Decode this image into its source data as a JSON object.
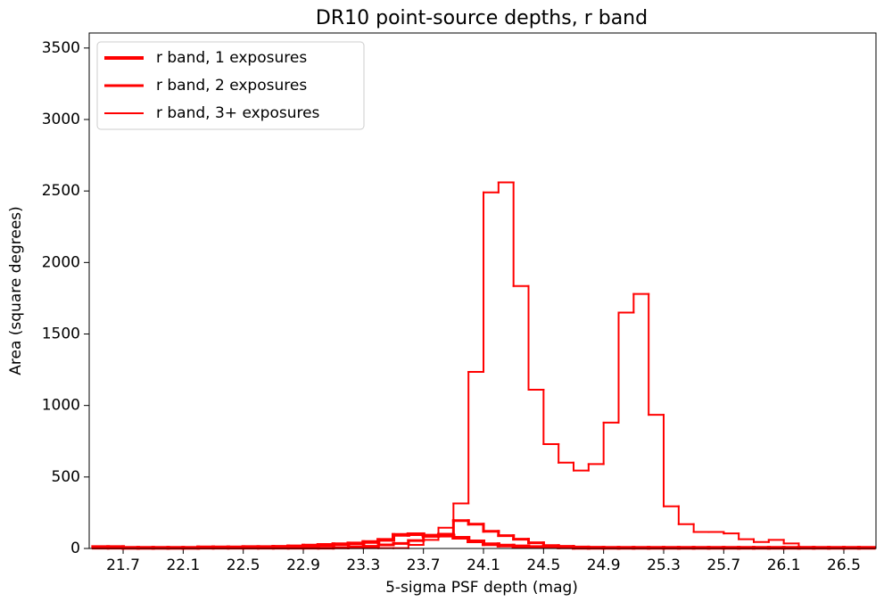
{
  "chart_data": {
    "type": "histogram",
    "title": "DR10 point-source depths, r band",
    "x_label": "5-sigma PSF depth (mag)",
    "y_label": "Area (square degrees)",
    "bins": [
      21.5,
      21.6,
      21.7,
      21.8,
      21.9,
      22.0,
      22.1,
      22.2,
      22.3,
      22.4,
      22.5,
      22.6,
      22.7,
      22.8,
      22.9,
      23.0,
      23.1,
      23.2,
      23.3,
      23.4,
      23.5,
      23.6,
      23.7,
      23.8,
      23.9,
      24.0,
      24.1,
      24.2,
      24.3,
      24.4,
      24.5,
      24.6,
      24.7,
      24.8,
      24.9,
      25.0,
      25.1,
      25.2,
      25.3,
      25.4,
      25.5,
      25.6,
      25.7,
      25.8,
      25.9,
      26.0,
      26.1,
      26.2,
      26.3,
      26.4,
      26.5,
      26.6,
      26.7
    ],
    "series": [
      {
        "name": "r band, 1 exposures",
        "color": "#ff0000",
        "linewidth": 4,
        "values": [
          10,
          10,
          5,
          5,
          5,
          5,
          5,
          8,
          8,
          8,
          10,
          10,
          12,
          15,
          20,
          25,
          30,
          35,
          45,
          60,
          95,
          100,
          90,
          90,
          75,
          50,
          30,
          20,
          15,
          10,
          10,
          8,
          5,
          5,
          5,
          5,
          5,
          5,
          5,
          5,
          5,
          5,
          5,
          5,
          5,
          5,
          5,
          5,
          5,
          5,
          5,
          5
        ]
      },
      {
        "name": "r band, 2 exposures",
        "color": "#ff0000",
        "linewidth": 3,
        "values": [
          2,
          2,
          2,
          2,
          2,
          2,
          2,
          2,
          2,
          2,
          2,
          2,
          2,
          2,
          2,
          2,
          5,
          10,
          15,
          25,
          35,
          55,
          85,
          100,
          195,
          170,
          120,
          90,
          65,
          40,
          20,
          15,
          10,
          8,
          5,
          3,
          3,
          3,
          3,
          3,
          3,
          3,
          3,
          3,
          3,
          3,
          3,
          3,
          3,
          3,
          3,
          3
        ]
      },
      {
        "name": "r band, 3+ exposures",
        "color": "#ff0000",
        "linewidth": 2,
        "values": [
          2,
          2,
          2,
          2,
          2,
          2,
          2,
          2,
          2,
          2,
          2,
          2,
          2,
          2,
          2,
          2,
          2,
          2,
          2,
          2,
          2,
          25,
          60,
          145,
          315,
          1235,
          2490,
          2560,
          1835,
          1110,
          730,
          600,
          545,
          590,
          880,
          1650,
          1780,
          935,
          295,
          170,
          115,
          115,
          105,
          65,
          45,
          60,
          35,
          10,
          5,
          3,
          2,
          2
        ]
      }
    ],
    "xlim": [
      21.474,
      26.714
    ],
    "ylim": [
      0,
      3605
    ],
    "xticks": [
      21.7,
      22.1,
      22.5,
      22.9,
      23.3,
      23.7,
      24.1,
      24.5,
      24.9,
      25.3,
      25.7,
      26.1,
      26.5
    ],
    "yticks": [
      0,
      500,
      1000,
      1500,
      2000,
      2500,
      3000,
      3500
    ],
    "legend": "upper left"
  }
}
